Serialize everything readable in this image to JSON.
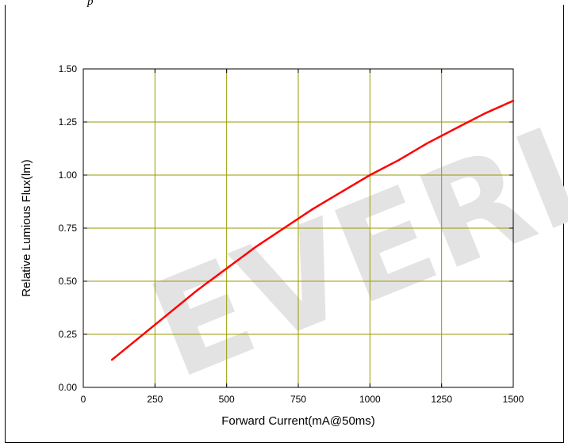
{
  "header": {
    "fragment": "p"
  },
  "watermark": "EVERI",
  "chart_data": {
    "type": "line",
    "xlabel": "Forward Current(mA@50ms)",
    "ylabel": "Relative Lumious Flux(lm)",
    "xlim": [
      0,
      1500
    ],
    "ylim": [
      0.0,
      1.5
    ],
    "xticks": [
      "0",
      "250",
      "500",
      "750",
      "1000",
      "1250",
      "1500"
    ],
    "yticks": [
      "0.00",
      "0.25",
      "0.50",
      "0.75",
      "1.00",
      "1.25",
      "1.50"
    ],
    "grid": true,
    "grid_color": "#9a9a00",
    "series": [
      {
        "color": "#ff0000",
        "x": [
          100,
          200,
          300,
          400,
          500,
          600,
          700,
          800,
          900,
          1000,
          1100,
          1200,
          1300,
          1400,
          1500
        ],
        "y": [
          0.13,
          0.24,
          0.35,
          0.46,
          0.56,
          0.66,
          0.75,
          0.84,
          0.92,
          1.0,
          1.07,
          1.15,
          1.22,
          1.29,
          1.35
        ]
      }
    ]
  }
}
